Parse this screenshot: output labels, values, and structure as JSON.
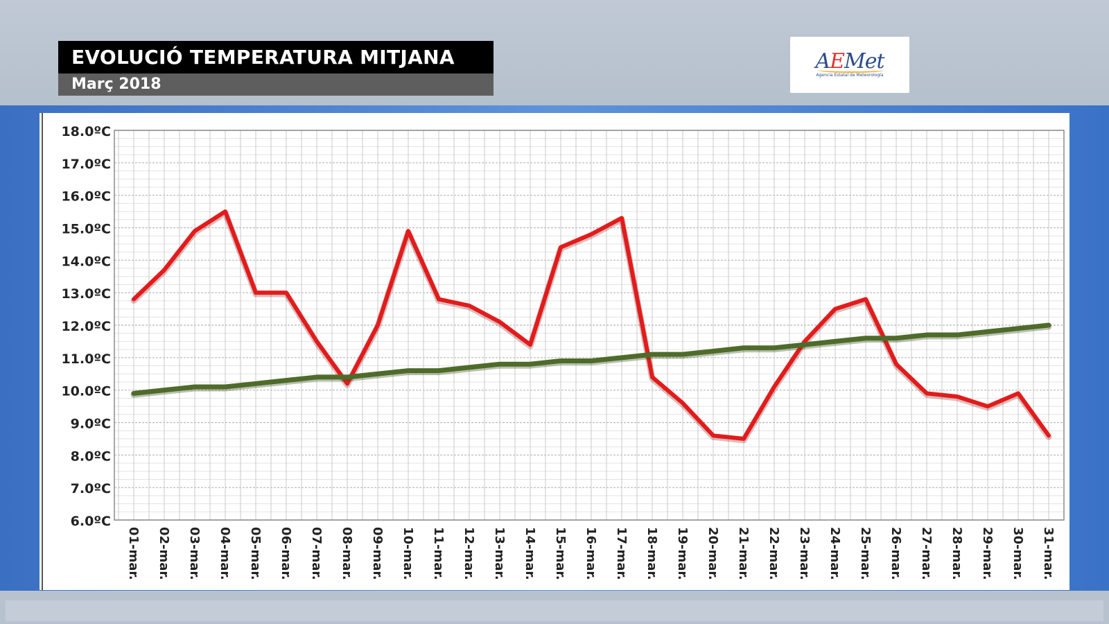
{
  "header": {
    "title": "EVOLUCIÓ TEMPERATURA MITJANA",
    "subtitle": "Març 2018"
  },
  "logo": {
    "name": "AEMet",
    "tagline": "Agencia Estatal de Meteorología",
    "colors": {
      "blue": "#2b4c8c",
      "red": "#e3312d",
      "yellow": "#f1b32b"
    }
  },
  "chart_data": {
    "type": "line",
    "title": "",
    "xlabel": "",
    "ylabel": "",
    "categories": [
      "01-mar.",
      "02-mar.",
      "03-mar.",
      "04-mar.",
      "05-mar.",
      "06-mar.",
      "07-mar.",
      "08-mar.",
      "09-mar.",
      "10-mar.",
      "11-mar.",
      "12-mar.",
      "13-mar.",
      "14-mar.",
      "15-mar.",
      "16-mar.",
      "17-mar.",
      "18-mar.",
      "19-mar.",
      "20-mar.",
      "21-mar.",
      "22-mar.",
      "23-mar.",
      "24-mar.",
      "25-mar.",
      "26-mar.",
      "27-mar.",
      "28-mar.",
      "29-mar.",
      "30-mar.",
      "31-mar."
    ],
    "y_ticks": [
      "6.0ºC",
      "7.0ºC",
      "8.0ºC",
      "9.0ºC",
      "10.0ºC",
      "11.0ºC",
      "12.0ºC",
      "13.0ºC",
      "14.0ºC",
      "15.0ºC",
      "16.0ºC",
      "17.0ºC",
      "18.0ºC"
    ],
    "ylim": [
      6,
      18
    ],
    "grid": true,
    "series": [
      {
        "color": "#e31b1b",
        "values": [
          12.8,
          13.7,
          14.9,
          15.5,
          13.0,
          13.0,
          11.5,
          10.2,
          12.0,
          14.9,
          12.8,
          12.6,
          12.1,
          11.4,
          14.4,
          14.8,
          15.3,
          10.4,
          9.6,
          8.6,
          8.5,
          10.1,
          11.5,
          12.5,
          12.8,
          10.8,
          9.9,
          9.8,
          9.5,
          9.9,
          8.6
        ]
      },
      {
        "color": "#4e6b2a",
        "values": [
          9.9,
          10.0,
          10.1,
          10.1,
          10.2,
          10.3,
          10.4,
          10.4,
          10.5,
          10.6,
          10.6,
          10.7,
          10.8,
          10.8,
          10.9,
          10.9,
          11.0,
          11.1,
          11.1,
          11.2,
          11.3,
          11.3,
          11.4,
          11.5,
          11.6,
          11.6,
          11.7,
          11.7,
          11.8,
          11.9,
          12.0
        ]
      }
    ]
  }
}
